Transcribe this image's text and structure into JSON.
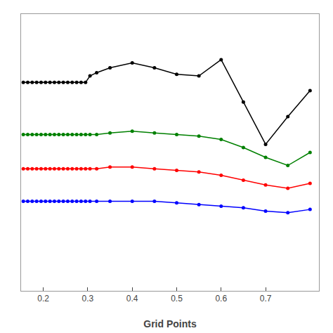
{
  "chart_data": {
    "type": "line",
    "x_label": "Grid Points",
    "x": [
      0.155,
      0.165,
      0.175,
      0.185,
      0.195,
      0.205,
      0.215,
      0.225,
      0.235,
      0.245,
      0.255,
      0.265,
      0.275,
      0.285,
      0.295,
      0.305,
      0.32,
      0.35,
      0.4,
      0.45,
      0.5,
      0.55,
      0.6,
      0.65,
      0.7,
      0.75,
      0.8
    ],
    "series": [
      {
        "color": "black",
        "marker": "circle",
        "line_style": "solid",
        "values": [
          -4.22,
          -4.22,
          -4.22,
          -4.22,
          -4.22,
          -4.22,
          -4.22,
          -4.22,
          -4.22,
          -4.22,
          -4.22,
          -4.22,
          -4.22,
          -4.22,
          -4.22,
          -4.18,
          -4.16,
          -4.13,
          -4.1,
          -4.13,
          -4.17,
          -4.18,
          -4.08,
          -4.34,
          -4.6,
          -4.43,
          -4.27
        ]
      },
      {
        "color": "green",
        "marker": "circle",
        "line_style": "solid",
        "values": [
          -4.54,
          -4.54,
          -4.54,
          -4.54,
          -4.54,
          -4.54,
          -4.54,
          -4.54,
          -4.54,
          -4.54,
          -4.54,
          -4.54,
          -4.54,
          -4.54,
          -4.54,
          -4.54,
          -4.54,
          -4.53,
          -4.52,
          -4.53,
          -4.54,
          -4.55,
          -4.57,
          -4.62,
          -4.68,
          -4.73,
          -4.65
        ]
      },
      {
        "color": "red",
        "marker": "circle",
        "line_style": "solid",
        "values": [
          -4.75,
          -4.75,
          -4.75,
          -4.75,
          -4.75,
          -4.75,
          -4.75,
          -4.75,
          -4.75,
          -4.75,
          -4.75,
          -4.75,
          -4.75,
          -4.75,
          -4.75,
          -4.75,
          -4.75,
          -4.74,
          -4.74,
          -4.75,
          -4.76,
          -4.77,
          -4.79,
          -4.82,
          -4.85,
          -4.87,
          -4.84
        ]
      },
      {
        "color": "blue",
        "marker": "circle",
        "line_style": "solid",
        "values": [
          -4.95,
          -4.95,
          -4.95,
          -4.95,
          -4.95,
          -4.95,
          -4.95,
          -4.95,
          -4.95,
          -4.95,
          -4.95,
          -4.95,
          -4.95,
          -4.95,
          -4.95,
          -4.95,
          -4.95,
          -4.95,
          -4.95,
          -4.95,
          -4.96,
          -4.97,
          -4.98,
          -4.99,
          -5.01,
          -5.02,
          -5.0
        ]
      }
    ],
    "xlim": [
      0.15,
      0.82
    ],
    "ylim": [
      -5.5,
      -3.8
    ],
    "xticks": [
      0.2,
      0.3,
      0.4,
      0.5,
      0.6,
      0.7
    ],
    "yticks": [],
    "grid": false,
    "tick_labels": "x"
  }
}
